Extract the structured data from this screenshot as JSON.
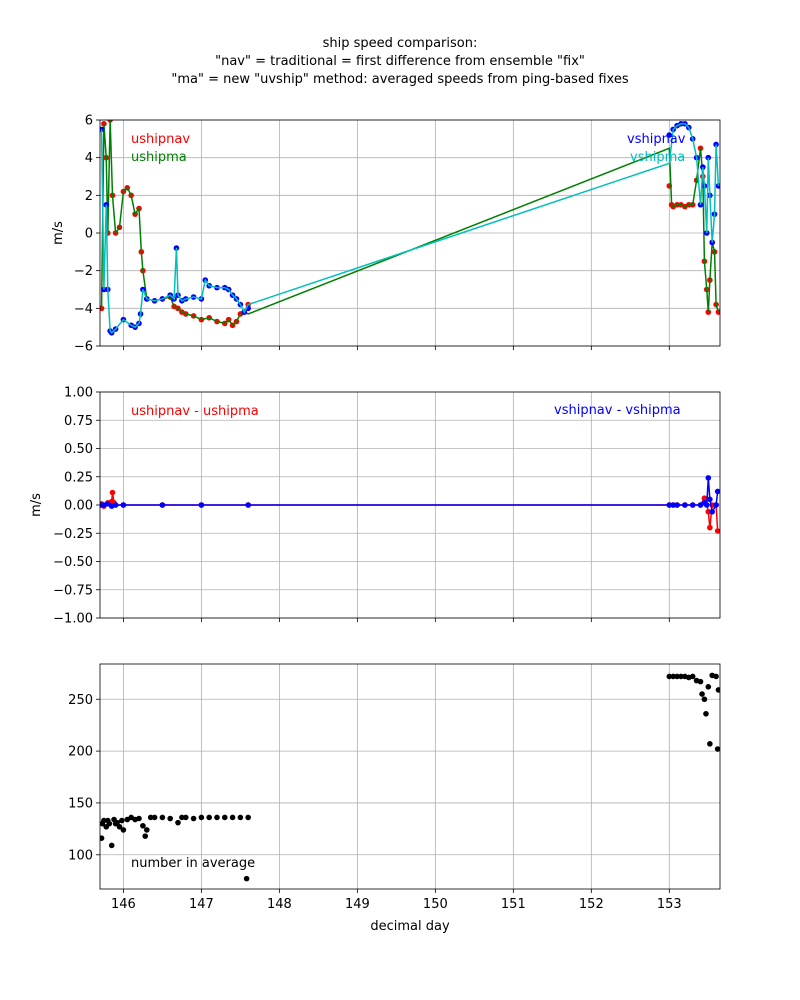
{
  "figure": {
    "title_lines": [
      "ship speed comparison:",
      "\"nav\" = traditional = first difference from ensemble \"fix\"",
      "\"ma\" = new \"uvship\" method: averaged speeds from ping-based fixes"
    ],
    "xlabel": "decimal day"
  },
  "colors": {
    "red": "#ff0000",
    "green": "#008000",
    "blue": "#0000ff",
    "cyan": "#00bfbf",
    "black": "#000000",
    "grid": "#b0b0b0"
  },
  "chart_data": [
    {
      "type": "line",
      "ylabel": "m/s",
      "xlim": [
        145.7,
        153.65
      ],
      "ylim": [
        -6,
        6
      ],
      "xticks": [
        146,
        147,
        148,
        149,
        150,
        151,
        152,
        153
      ],
      "yticks": [
        -6,
        -4,
        -2,
        0,
        2,
        4,
        6
      ],
      "ytick_labels": [
        "−6",
        "−4",
        "−2",
        "0",
        "2",
        "4",
        "6"
      ],
      "grid": true,
      "annotations": [
        {
          "text": "ushipnav",
          "color": "red",
          "pos": "top-left-1"
        },
        {
          "text": "ushipma",
          "color": "green",
          "pos": "top-left-2"
        },
        {
          "text": "vshipnav",
          "color": "blue",
          "pos": "top-right-1"
        },
        {
          "text": "vshipma",
          "color": "cyan",
          "pos": "top-right-2"
        }
      ],
      "series": [
        {
          "name": "ushipnav",
          "color": "red",
          "style": "markers",
          "x": [
            145.72,
            145.75,
            145.78,
            145.8,
            145.83,
            145.86,
            145.9,
            145.95,
            146.0,
            146.05,
            146.1,
            146.15,
            146.2,
            146.23,
            146.25,
            146.3,
            146.4,
            146.5,
            146.6,
            146.65,
            146.7,
            146.75,
            146.8,
            146.9,
            147.0,
            147.1,
            147.2,
            147.3,
            147.35,
            147.4,
            147.45,
            147.5,
            147.55,
            147.6,
            153.0,
            153.03,
            153.05,
            153.1,
            153.15,
            153.2,
            153.25,
            153.3,
            153.35,
            153.4,
            153.43,
            153.45,
            153.48,
            153.5,
            153.52,
            153.55,
            153.58,
            153.6,
            153.63
          ],
          "y": [
            -4.0,
            5.8,
            4.0,
            0.0,
            6.0,
            2.0,
            0.0,
            0.3,
            2.2,
            2.4,
            2.0,
            1.0,
            1.3,
            -1.0,
            -2.0,
            -3.5,
            -3.6,
            -3.5,
            -3.4,
            -3.9,
            -4.0,
            -4.2,
            -4.3,
            -4.4,
            -4.6,
            -4.5,
            -4.7,
            -4.8,
            -4.6,
            -4.9,
            -4.7,
            -4.3,
            -4.2,
            -3.8,
            2.5,
            1.5,
            1.4,
            1.5,
            1.5,
            1.4,
            1.5,
            1.5,
            2.8,
            4.5,
            3.0,
            -1.5,
            -3.0,
            -4.2,
            -2.5,
            -0.5,
            -1.0,
            -3.8,
            -4.2
          ]
        },
        {
          "name": "ushipma",
          "color": "green",
          "style": "line",
          "x": [
            145.72,
            145.75,
            145.78,
            145.8,
            145.83,
            145.86,
            145.9,
            145.95,
            146.0,
            146.05,
            146.1,
            146.15,
            146.2,
            146.23,
            146.25,
            146.3,
            146.4,
            146.5,
            146.6,
            146.65,
            146.7,
            146.75,
            146.8,
            146.9,
            147.0,
            147.1,
            147.2,
            147.3,
            147.35,
            147.4,
            147.45,
            147.5,
            147.55,
            147.6,
            153.0,
            153.03,
            153.05,
            153.1,
            153.15,
            153.2,
            153.25,
            153.3,
            153.35,
            153.4,
            153.43,
            153.45,
            153.48,
            153.5,
            153.52,
            153.55,
            153.58,
            153.6,
            153.63
          ],
          "y": [
            -4.0,
            5.8,
            4.0,
            0.0,
            6.0,
            2.0,
            0.0,
            0.3,
            2.2,
            2.4,
            2.0,
            1.0,
            1.3,
            -1.0,
            -2.0,
            -3.5,
            -3.6,
            -3.5,
            -3.4,
            -3.9,
            -4.0,
            -4.2,
            -4.3,
            -4.4,
            -4.6,
            -4.5,
            -4.7,
            -4.8,
            -4.6,
            -4.9,
            -4.7,
            -4.3,
            -4.2,
            -4.3,
            4.5,
            1.5,
            1.4,
            1.5,
            1.5,
            1.4,
            1.5,
            1.5,
            2.8,
            4.5,
            3.0,
            -1.5,
            -3.0,
            -4.2,
            -2.5,
            -0.5,
            -1.0,
            -3.8,
            -4.2
          ]
        },
        {
          "name": "vshipnav",
          "color": "blue",
          "style": "markers",
          "x": [
            145.72,
            145.75,
            145.78,
            145.8,
            145.83,
            145.85,
            145.9,
            146.0,
            146.1,
            146.15,
            146.2,
            146.22,
            146.25,
            146.3,
            146.4,
            146.5,
            146.6,
            146.65,
            146.68,
            146.7,
            146.75,
            146.8,
            146.9,
            147.0,
            147.05,
            147.1,
            147.2,
            147.3,
            147.35,
            147.4,
            147.45,
            147.5,
            147.55,
            147.6,
            153.0,
            153.05,
            153.1,
            153.15,
            153.2,
            153.25,
            153.3,
            153.35,
            153.4,
            153.43,
            153.45,
            153.48,
            153.5,
            153.52,
            153.55,
            153.58,
            153.6,
            153.63
          ],
          "y": [
            5.5,
            -3.0,
            1.5,
            -3.0,
            -5.2,
            -5.3,
            -5.1,
            -4.6,
            -4.9,
            -5.0,
            -4.8,
            -4.3,
            -3.0,
            -3.5,
            -3.6,
            -3.5,
            -3.3,
            -3.5,
            -0.8,
            -3.3,
            -3.6,
            -3.5,
            -3.4,
            -3.5,
            -2.5,
            -2.8,
            -2.9,
            -2.9,
            -3.0,
            -3.3,
            -3.5,
            -3.8,
            -4.2,
            -4.0,
            5.2,
            5.5,
            5.7,
            5.8,
            5.8,
            5.6,
            5.0,
            4.0,
            1.5,
            3.5,
            2.5,
            0.0,
            4.0,
            2.0,
            -0.5,
            1.0,
            4.7,
            2.5
          ]
        },
        {
          "name": "vshipma",
          "color": "cyan",
          "style": "line",
          "x": [
            145.72,
            145.75,
            145.78,
            145.8,
            145.83,
            145.85,
            145.9,
            146.0,
            146.1,
            146.15,
            146.2,
            146.22,
            146.25,
            146.3,
            146.4,
            146.5,
            146.6,
            146.65,
            146.68,
            146.7,
            146.75,
            146.8,
            146.9,
            147.0,
            147.05,
            147.1,
            147.2,
            147.3,
            147.35,
            147.4,
            147.45,
            147.5,
            147.55,
            147.6,
            153.0,
            153.05,
            153.1,
            153.15,
            153.2,
            153.25,
            153.3,
            153.35,
            153.4,
            153.43,
            153.45,
            153.48,
            153.5,
            153.52,
            153.55,
            153.58,
            153.6,
            153.63
          ],
          "y": [
            5.5,
            -3.0,
            1.5,
            -3.0,
            -5.2,
            -5.3,
            -5.1,
            -4.6,
            -4.9,
            -5.0,
            -4.8,
            -4.3,
            -3.0,
            -3.5,
            -3.6,
            -3.5,
            -3.3,
            -3.5,
            -0.8,
            -3.3,
            -3.6,
            -3.5,
            -3.4,
            -3.5,
            -2.5,
            -2.8,
            -2.9,
            -2.9,
            -3.0,
            -3.3,
            -3.5,
            -3.8,
            -4.2,
            -3.8,
            3.7,
            5.5,
            5.7,
            5.8,
            5.8,
            5.6,
            5.0,
            4.0,
            1.5,
            3.5,
            2.5,
            0.0,
            4.0,
            2.0,
            -0.5,
            1.0,
            4.7,
            2.5
          ]
        }
      ]
    },
    {
      "type": "line",
      "ylabel": "m/s",
      "xlim": [
        145.7,
        153.65
      ],
      "ylim": [
        -1.0,
        1.0
      ],
      "xticks": [
        146,
        147,
        148,
        149,
        150,
        151,
        152,
        153
      ],
      "yticks": [
        -1.0,
        -0.75,
        -0.5,
        -0.25,
        0.0,
        0.25,
        0.5,
        0.75,
        1.0
      ],
      "ytick_labels": [
        "−1.00",
        "−0.75",
        "−0.50",
        "−0.25",
        "0.00",
        "0.25",
        "0.50",
        "0.75",
        "1.00"
      ],
      "grid": true,
      "annotations": [
        {
          "text": "ushipnav - ushipma",
          "color": "red",
          "pos": "top-left-1"
        },
        {
          "text": "vshipnav - vshipma",
          "color": "blue",
          "pos": "top-right-wide"
        }
      ],
      "series": [
        {
          "name": "ushipnav - ushipma",
          "color": "red",
          "style": "markers-line",
          "x": [
            145.72,
            145.75,
            145.8,
            145.85,
            145.86,
            145.88,
            145.9,
            146.0,
            146.5,
            147.0,
            147.6,
            153.0,
            153.05,
            153.1,
            153.2,
            153.3,
            153.4,
            153.45,
            153.47,
            153.5,
            153.52,
            153.55,
            153.6,
            153.62
          ],
          "y": [
            0.01,
            -0.01,
            0.02,
            0.03,
            0.11,
            0.02,
            0.0,
            0.0,
            0.0,
            0.0,
            0.0,
            0.0,
            0.0,
            0.0,
            0.0,
            0.0,
            0.0,
            0.06,
            0.05,
            -0.06,
            -0.2,
            0.0,
            0.0,
            -0.23
          ]
        },
        {
          "name": "vshipnav - vshipma",
          "color": "blue",
          "style": "markers-line",
          "x": [
            145.72,
            145.75,
            145.8,
            145.85,
            145.9,
            146.0,
            146.5,
            147.0,
            147.6,
            153.0,
            153.05,
            153.1,
            153.2,
            153.3,
            153.4,
            153.45,
            153.48,
            153.5,
            153.52,
            153.55,
            153.6,
            153.62
          ],
          "y": [
            0.0,
            0.0,
            0.01,
            -0.01,
            0.0,
            0.0,
            0.0,
            0.0,
            0.0,
            0.0,
            0.0,
            0.0,
            0.0,
            0.0,
            0.0,
            0.02,
            0.0,
            0.24,
            0.05,
            -0.06,
            0.0,
            0.12
          ]
        }
      ]
    },
    {
      "type": "scatter",
      "ylabel": "",
      "xlim": [
        145.7,
        153.65
      ],
      "ylim": [
        67,
        284
      ],
      "xticks": [
        146,
        147,
        148,
        149,
        150,
        151,
        152,
        153
      ],
      "xtick_labels": [
        "146",
        "147",
        "148",
        "149",
        "150",
        "151",
        "152",
        "153"
      ],
      "yticks": [
        100,
        150,
        200,
        250
      ],
      "ytick_labels": [
        "100",
        "150",
        "200",
        "250"
      ],
      "grid": true,
      "annotations": [
        {
          "text": "number in average",
          "color": "black",
          "pos": "bottom-left"
        }
      ],
      "series": [
        {
          "name": "number in average",
          "color": "black",
          "style": "markers",
          "x": [
            145.72,
            145.73,
            145.75,
            145.78,
            145.8,
            145.82,
            145.85,
            145.88,
            145.9,
            145.92,
            145.95,
            145.98,
            146.0,
            146.05,
            146.1,
            146.15,
            146.2,
            146.25,
            146.28,
            146.3,
            146.35,
            146.4,
            146.5,
            146.6,
            146.7,
            146.75,
            146.8,
            146.9,
            147.0,
            147.1,
            147.2,
            147.3,
            147.4,
            147.5,
            147.58,
            147.6,
            153.0,
            153.05,
            153.1,
            153.15,
            153.2,
            153.25,
            153.3,
            153.35,
            153.4,
            153.42,
            153.45,
            153.47,
            153.5,
            153.52,
            153.55,
            153.6,
            153.62,
            153.63
          ],
          "y": [
            116,
            130,
            133,
            127,
            133,
            130,
            109,
            134,
            130,
            131,
            127,
            133,
            124,
            134,
            136,
            134,
            135,
            128,
            118,
            124,
            136,
            136,
            136,
            135,
            131,
            136,
            136,
            135,
            136,
            136,
            136,
            136,
            136,
            136,
            77,
            136,
            272,
            272,
            272,
            272,
            272,
            271,
            272,
            268,
            267,
            255,
            250,
            236,
            262,
            207,
            273,
            272,
            202,
            259
          ]
        }
      ]
    }
  ]
}
